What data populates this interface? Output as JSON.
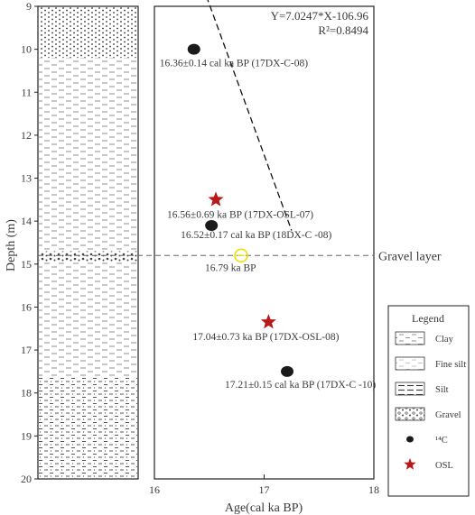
{
  "chart_data": {
    "type": "scatter",
    "xlabel": "Age(cal ka BP)",
    "ylabel": "Depth (m)",
    "xlim": [
      16,
      18
    ],
    "ylim": [
      20,
      9
    ],
    "x_ticks": [
      "16",
      "17",
      "18"
    ],
    "y_ticks": [
      "9",
      "10",
      "11",
      "12",
      "13",
      "14",
      "15",
      "16",
      "17",
      "18",
      "19",
      "20"
    ],
    "regression": {
      "equation": "Y=7.0247*X-106.96",
      "r2": "R²=0.8494",
      "x_start": 16.35,
      "x_end": 17.25,
      "style": "dashed"
    },
    "gravel_layer": {
      "depth": 14.8,
      "label": "Gravel layer"
    },
    "series": [
      {
        "name": "¹⁴C",
        "marker": "ellipse",
        "color": "#1a1a1a",
        "points": [
          {
            "x": 16.36,
            "y": 10.0,
            "label": "16.36±0.14 cal ka BP  (17DX-C-08)"
          },
          {
            "x": 16.52,
            "y": 14.1,
            "label": "16.52±0.17 cal ka BP  (18DX-C -08)"
          },
          {
            "x": 17.21,
            "y": 17.5,
            "label": "17.21±0.15 cal ka BP  (17DX-C -10)"
          }
        ]
      },
      {
        "name": "OSL",
        "marker": "star",
        "color": "#b81818",
        "points": [
          {
            "x": 16.56,
            "y": 13.5,
            "label": "16.56±0.69 ka BP  (17DX-OSL-07)"
          },
          {
            "x": 17.04,
            "y": 16.35,
            "label": "17.04±0.73 ka BP  (17DX-OSL-08)"
          }
        ]
      }
    ],
    "interpolated": {
      "x": 16.79,
      "y": 14.8,
      "label": "16.79 ka BP",
      "color": "#f0e000"
    },
    "lithology": [
      {
        "from": 9,
        "to": 10.2,
        "type": "Fine silt"
      },
      {
        "from": 10.2,
        "to": 14.7,
        "type": "Clay"
      },
      {
        "from": 14.7,
        "to": 14.95,
        "type": "Gravel"
      },
      {
        "from": 14.95,
        "to": 17.6,
        "type": "Clay"
      },
      {
        "from": 17.6,
        "to": 20,
        "type": "Silt"
      }
    ],
    "legend": {
      "title": "Legend",
      "placement": "right",
      "items": [
        {
          "label": "Clay",
          "kind": "clay"
        },
        {
          "label": "Fine silt",
          "kind": "finesilt"
        },
        {
          "label": "Silt",
          "kind": "silt"
        },
        {
          "label": "Gravel",
          "kind": "gravel"
        },
        {
          "label": "¹⁴C",
          "kind": "c14"
        },
        {
          "label": "OSL",
          "kind": "osl"
        }
      ]
    }
  }
}
